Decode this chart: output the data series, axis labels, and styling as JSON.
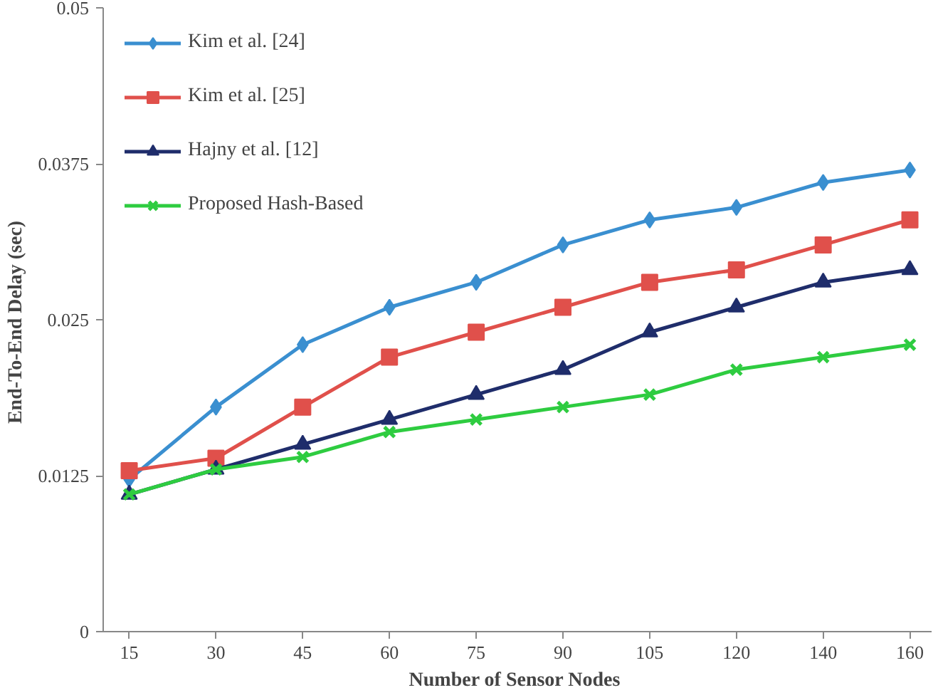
{
  "chart_data": {
    "type": "line",
    "xlabel": "Number  of Sensor Nodes",
    "ylabel": "End-To-End  Delay (sec)",
    "categories": [
      "15",
      "30",
      "45",
      "60",
      "75",
      "90",
      "105",
      "120",
      "140",
      "160"
    ],
    "ylim": [
      0,
      0.05
    ],
    "yticks": [
      0,
      0.0125,
      0.025,
      0.0375,
      0.05
    ],
    "grid": false,
    "legend": "top left",
    "line_style": "solid",
    "series": [
      {
        "name": "Kim et al. [24]",
        "color": "#3a8fd0",
        "marker": "diamond",
        "values": [
          0.0122,
          0.018,
          0.023,
          0.026,
          0.028,
          0.031,
          0.033,
          0.034,
          0.036,
          0.037
        ]
      },
      {
        "name": "Kim et al. [25]",
        "color": "#e0504b",
        "marker": "square",
        "values": [
          0.0129,
          0.0139,
          0.018,
          0.022,
          0.024,
          0.026,
          0.028,
          0.029,
          0.031,
          0.033
        ]
      },
      {
        "name": "Hajny et al. [12]",
        "color": "#1f2d6b",
        "marker": "triangle",
        "values": [
          0.011,
          0.013,
          0.015,
          0.017,
          0.019,
          0.021,
          0.024,
          0.026,
          0.028,
          0.029
        ]
      },
      {
        "name": "Proposed Hash-Based",
        "color": "#2ecc40",
        "marker": "cross",
        "values": [
          0.011,
          0.013,
          0.014,
          0.016,
          0.017,
          0.018,
          0.019,
          0.021,
          0.022,
          0.023
        ]
      }
    ]
  }
}
